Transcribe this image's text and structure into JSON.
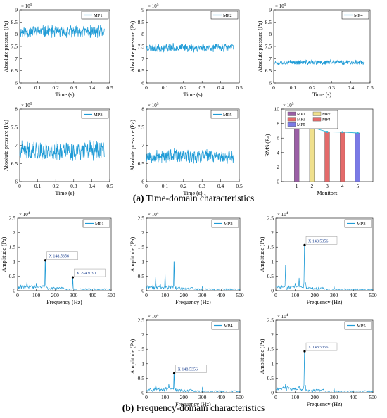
{
  "captions": {
    "a_letter": "(a)",
    "a_text": " Time-domain characteristics",
    "b_letter": "(b)",
    "b_text": " Frequency-domain characteristics"
  },
  "colors": {
    "series": "#1f9bd6",
    "bar_purple": "#9b5fa6",
    "bar_yellow": "#f0e08c",
    "bar_red": "#e46a6a",
    "bar_blue": "#7a7ae6",
    "line_rms": "#2fb8d8"
  },
  "chart_data": [
    {
      "id": "t-mp1",
      "type": "line",
      "xlabel": "Time (s)",
      "ylabel": "Absolute pressure (Pa)",
      "xlim": [
        0,
        0.5
      ],
      "ylim": [
        6,
        9
      ],
      "xticks": [
        "0",
        "0.1",
        "0.2",
        "0.3",
        "0.4",
        "0.5"
      ],
      "yticks": [
        "6",
        "6.5",
        "7",
        "7.5",
        "8",
        "8.5",
        "9"
      ],
      "exponent": "× 10^5",
      "legend": [
        "MP1"
      ],
      "legend_position": "top-right",
      "series": [
        {
          "name": "MP1",
          "x_range": [
            0,
            0.47
          ],
          "mean": 8.1,
          "amplitude": 0.3
        }
      ]
    },
    {
      "id": "t-mp2",
      "type": "line",
      "xlabel": "Time (s)",
      "ylabel": "Absolute pressure (Pa)",
      "xlim": [
        0,
        0.5
      ],
      "ylim": [
        6,
        9
      ],
      "xticks": [
        "0",
        "0.1",
        "0.2",
        "0.3",
        "0.4",
        "0.5"
      ],
      "yticks": [
        "6",
        "6.5",
        "7",
        "7.5",
        "8",
        "8.5",
        "9"
      ],
      "exponent": "× 10^5",
      "legend": [
        "MP2"
      ],
      "legend_position": "top-right",
      "series": [
        {
          "name": "MP2",
          "x_range": [
            0,
            0.47
          ],
          "mean": 7.45,
          "amplitude": 0.2
        }
      ]
    },
    {
      "id": "t-mp4",
      "type": "line",
      "xlabel": "Time (s)",
      "ylabel": "Absolute pressure (Pa)",
      "xlim": [
        0,
        0.5
      ],
      "ylim": [
        6,
        9
      ],
      "xticks": [
        "0",
        "0.1",
        "0.2",
        "0.3",
        "0.4",
        "0.5"
      ],
      "yticks": [
        "6",
        "6.5",
        "7",
        "7.5",
        "8",
        "8.5",
        "9"
      ],
      "exponent": "× 10^5",
      "legend": [
        "MP4"
      ],
      "legend_position": "top-right",
      "series": [
        {
          "name": "MP4",
          "x_range": [
            0,
            0.47
          ],
          "mean": 6.85,
          "amplitude": 0.12
        }
      ]
    },
    {
      "id": "t-mp3",
      "type": "line",
      "xlabel": "Time (s)",
      "ylabel": "Absolute pressure (Pa)",
      "xlim": [
        0,
        0.5
      ],
      "ylim": [
        6,
        8
      ],
      "xticks": [
        "0",
        "0.1",
        "0.2",
        "0.3",
        "0.4",
        "0.5"
      ],
      "yticks": [
        "6",
        "6.5",
        "7",
        "7.5",
        "8"
      ],
      "exponent": "× 10^5",
      "legend": [
        "MP3"
      ],
      "legend_position": "top-right",
      "series": [
        {
          "name": "MP3",
          "x_range": [
            0,
            0.47
          ],
          "mean": 6.85,
          "amplitude": 0.3
        }
      ]
    },
    {
      "id": "t-mp5",
      "type": "line",
      "xlabel": "Time (s)",
      "ylabel": "Absolute pressure (Pa)",
      "xlim": [
        0,
        0.5
      ],
      "ylim": [
        6,
        8
      ],
      "xticks": [
        "0",
        "0.1",
        "0.2",
        "0.3",
        "0.4",
        "0.5"
      ],
      "yticks": [
        "6",
        "6.5",
        "7",
        "7.5",
        "8"
      ],
      "exponent": "× 10^5",
      "legend": [
        "MP5"
      ],
      "legend_position": "top-right",
      "series": [
        {
          "name": "MP5",
          "x_range": [
            0,
            0.47
          ],
          "mean": 6.7,
          "amplitude": 0.22
        }
      ]
    },
    {
      "id": "rms",
      "type": "bar",
      "xlabel": "Monitors",
      "ylabel": "RMS (Pa)",
      "xlim": [
        0,
        6
      ],
      "ylim": [
        0,
        10
      ],
      "categories": [
        "1",
        "2",
        "3",
        "4",
        "5"
      ],
      "yticks": [
        "0",
        "2",
        "4",
        "6",
        "8",
        "10"
      ],
      "exponent": "× 10^5",
      "legend": [
        "MP1",
        "MP2",
        "MP3",
        "MP4",
        "MP5"
      ],
      "legend_position": "top",
      "values": [
        8.1,
        7.45,
        6.85,
        6.82,
        6.7
      ]
    },
    {
      "id": "f-mp1",
      "type": "line",
      "xlabel": "Frequency (Hz)",
      "ylabel": "Amplitude (Pa)",
      "xlim": [
        0,
        500
      ],
      "ylim": [
        0,
        25000
      ],
      "xticks": [
        "0",
        "100",
        "200",
        "300",
        "400",
        "500"
      ],
      "yticks": [
        "0",
        "0.5",
        "1",
        "1.5",
        "2",
        "2.5"
      ],
      "exponent": "× 10^4",
      "legend": [
        "MP1"
      ],
      "legend_position": "top-right",
      "series": [
        {
          "name": "MP1",
          "peaks": [
            [
              148.5356,
              10500
            ],
            [
              294.9791,
              4600
            ],
            [
              50,
              2900
            ],
            [
              100,
              2600
            ]
          ]
        }
      ],
      "annotations": [
        {
          "x": 148.5356,
          "y": 10500,
          "text": "X 148.5356"
        },
        {
          "x": 294.9791,
          "y": 4600,
          "text": "X 294.9791"
        }
      ]
    },
    {
      "id": "f-mp2",
      "type": "line",
      "xlabel": "Frequency (Hz)",
      "ylabel": "Amplitude (Pa)",
      "xlim": [
        0,
        500
      ],
      "ylim": [
        0,
        25000
      ],
      "xticks": [
        "0",
        "100",
        "200",
        "300",
        "400",
        "500"
      ],
      "yticks": [
        "0",
        "0.5",
        "1",
        "1.5",
        "2",
        "2.5"
      ],
      "exponent": "× 10^4",
      "legend": [
        "MP2"
      ],
      "legend_position": "top-right",
      "series": [
        {
          "name": "MP2",
          "peaks": [
            [
              148.5,
              10000
            ],
            [
              50,
              4700
            ],
            [
              100,
              6100
            ],
            [
              75,
              2400
            ],
            [
              300,
              1700
            ]
          ]
        }
      ],
      "annotations": []
    },
    {
      "id": "f-mp3",
      "type": "line",
      "xlabel": "Frequency (Hz)",
      "ylabel": "Amplitude (Pa)",
      "xlim": [
        0,
        500
      ],
      "ylim": [
        0,
        25000
      ],
      "xticks": [
        "0",
        "100",
        "200",
        "300",
        "400",
        "500"
      ],
      "yticks": [
        "0",
        "0.5",
        "1",
        "1.5",
        "2",
        "2.5"
      ],
      "exponent": "× 10^4",
      "legend": [
        "MP3"
      ],
      "legend_position": "top-right",
      "series": [
        {
          "name": "MP3",
          "peaks": [
            [
              148.5356,
              15700
            ],
            [
              50,
              8800
            ],
            [
              100,
              2600
            ],
            [
              120,
              4400
            ],
            [
              300,
              1500
            ]
          ]
        }
      ],
      "annotations": [
        {
          "x": 148.5356,
          "y": 15700,
          "text": "X 148.5356"
        }
      ]
    },
    {
      "id": "f-mp4",
      "type": "line",
      "xlabel": "Frequency (Hz)",
      "ylabel": "Amplitude (Pa)",
      "xlim": [
        0,
        500
      ],
      "ylim": [
        0,
        25000
      ],
      "xticks": [
        "0",
        "100",
        "200",
        "300",
        "400",
        "500"
      ],
      "yticks": [
        "0",
        "0.5",
        "1",
        "1.5",
        "2",
        "2.5"
      ],
      "exponent": "× 10^4",
      "legend": [
        "MP4"
      ],
      "legend_position": "top-right",
      "series": [
        {
          "name": "MP4",
          "peaks": [
            [
              148.5356,
              6700
            ],
            [
              50,
              2600
            ],
            [
              100,
              2100
            ],
            [
              120,
              3000
            ],
            [
              300,
              2000
            ]
          ]
        }
      ],
      "annotations": [
        {
          "x": 148.5356,
          "y": 6700,
          "text": "X 148.5356"
        }
      ]
    },
    {
      "id": "f-mp5",
      "type": "line",
      "xlabel": "Frequency (Hz)",
      "ylabel": "Amplitude (Pa)",
      "xlim": [
        0,
        500
      ],
      "ylim": [
        0,
        25000
      ],
      "xticks": [
        "0",
        "100",
        "200",
        "300",
        "400",
        "500"
      ],
      "yticks": [
        "0",
        "0.5",
        "1",
        "1.5",
        "2",
        "2.5"
      ],
      "exponent": "× 10^4",
      "legend": [
        "MP5"
      ],
      "legend_position": "top-right",
      "series": [
        {
          "name": "MP5",
          "peaks": [
            [
              148.5356,
              14300
            ],
            [
              50,
              3000
            ],
            [
              100,
              1700
            ],
            [
              120,
              2400
            ],
            [
              300,
              1500
            ]
          ]
        }
      ],
      "annotations": [
        {
          "x": 148.5356,
          "y": 14300,
          "text": "X 148.5356"
        }
      ]
    }
  ]
}
